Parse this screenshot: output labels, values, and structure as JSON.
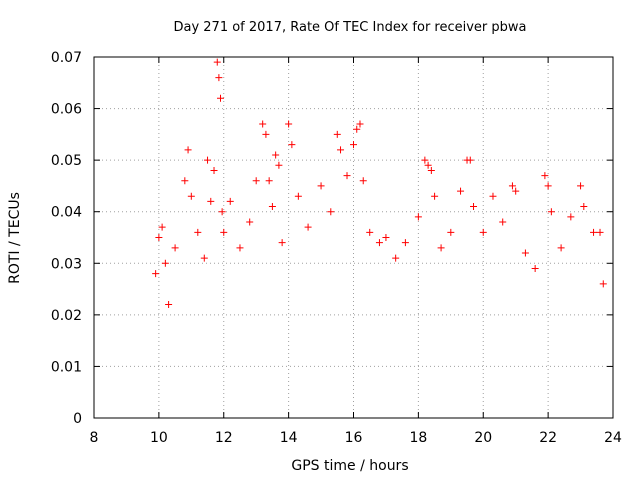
{
  "chart_data": {
    "type": "scatter",
    "title": "Day 271 of 2017, Rate Of TEC Index for receiver pbwa",
    "xlabel": "GPS time / hours",
    "ylabel": "ROTI / TECUs",
    "xlim": [
      8,
      24
    ],
    "ylim": [
      0,
      0.07
    ],
    "x_ticks": [
      8,
      10,
      12,
      14,
      16,
      18,
      20,
      22,
      24
    ],
    "y_ticks": [
      0,
      0.01,
      0.02,
      0.03,
      0.04,
      0.05,
      0.06,
      0.07
    ],
    "x_tick_labels": [
      "8",
      "10",
      "12",
      "14",
      "16",
      "18",
      "20",
      "22",
      "24"
    ],
    "y_tick_labels": [
      "0",
      "0.01",
      "0.02",
      "0.03",
      "0.04",
      "0.05",
      "0.06",
      "0.07"
    ],
    "grid": true,
    "marker": "+",
    "marker_color": "#ff0000",
    "series": [
      {
        "name": "ROTI",
        "x": [
          9.9,
          10.0,
          10.1,
          10.2,
          10.3,
          10.5,
          10.8,
          10.9,
          11.0,
          11.2,
          11.4,
          11.5,
          11.6,
          11.7,
          11.8,
          11.85,
          11.9,
          11.95,
          12.0,
          12.2,
          12.5,
          12.8,
          13.0,
          13.2,
          13.3,
          13.4,
          13.5,
          13.6,
          13.7,
          13.8,
          14.0,
          14.1,
          14.3,
          14.6,
          15.0,
          15.3,
          15.5,
          15.6,
          15.8,
          16.0,
          16.1,
          16.2,
          16.3,
          16.5,
          16.8,
          17.0,
          17.3,
          17.6,
          18.0,
          18.2,
          18.3,
          18.4,
          18.5,
          18.7,
          19.0,
          19.3,
          19.5,
          19.6,
          19.7,
          20.0,
          20.3,
          20.6,
          20.9,
          21.0,
          21.3,
          21.6,
          21.9,
          22.0,
          22.1,
          22.4,
          22.7,
          23.0,
          23.1,
          23.4,
          23.6,
          23.7
        ],
        "y": [
          0.028,
          0.035,
          0.037,
          0.03,
          0.022,
          0.033,
          0.046,
          0.052,
          0.043,
          0.036,
          0.031,
          0.05,
          0.042,
          0.048,
          0.069,
          0.066,
          0.062,
          0.04,
          0.036,
          0.042,
          0.033,
          0.038,
          0.046,
          0.057,
          0.055,
          0.046,
          0.041,
          0.051,
          0.049,
          0.034,
          0.057,
          0.053,
          0.043,
          0.037,
          0.045,
          0.04,
          0.055,
          0.052,
          0.047,
          0.053,
          0.056,
          0.057,
          0.046,
          0.036,
          0.034,
          0.035,
          0.031,
          0.034,
          0.039,
          0.05,
          0.049,
          0.048,
          0.043,
          0.033,
          0.036,
          0.044,
          0.05,
          0.05,
          0.041,
          0.036,
          0.043,
          0.038,
          0.045,
          0.044,
          0.032,
          0.029,
          0.047,
          0.045,
          0.04,
          0.033,
          0.039,
          0.045,
          0.041,
          0.036,
          0.036,
          0.026
        ]
      }
    ],
    "annotations": []
  }
}
